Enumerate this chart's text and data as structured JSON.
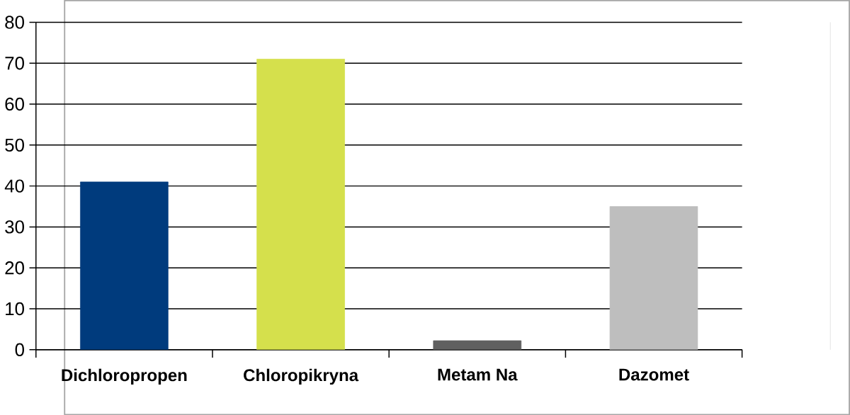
{
  "chart_data": {
    "type": "bar",
    "categories": [
      "Dichloropropen",
      "Chloropikryna",
      "Metam Na",
      "Dazomet"
    ],
    "values": [
      41,
      71,
      2.2,
      35
    ],
    "colors": [
      "#003b7d",
      "#d5e04c",
      "#606060",
      "#bebebe"
    ],
    "ylim": [
      0,
      80
    ],
    "yticks": [
      0,
      10,
      20,
      30,
      40,
      50,
      60,
      70,
      80
    ],
    "grid": "y",
    "legend": false
  }
}
